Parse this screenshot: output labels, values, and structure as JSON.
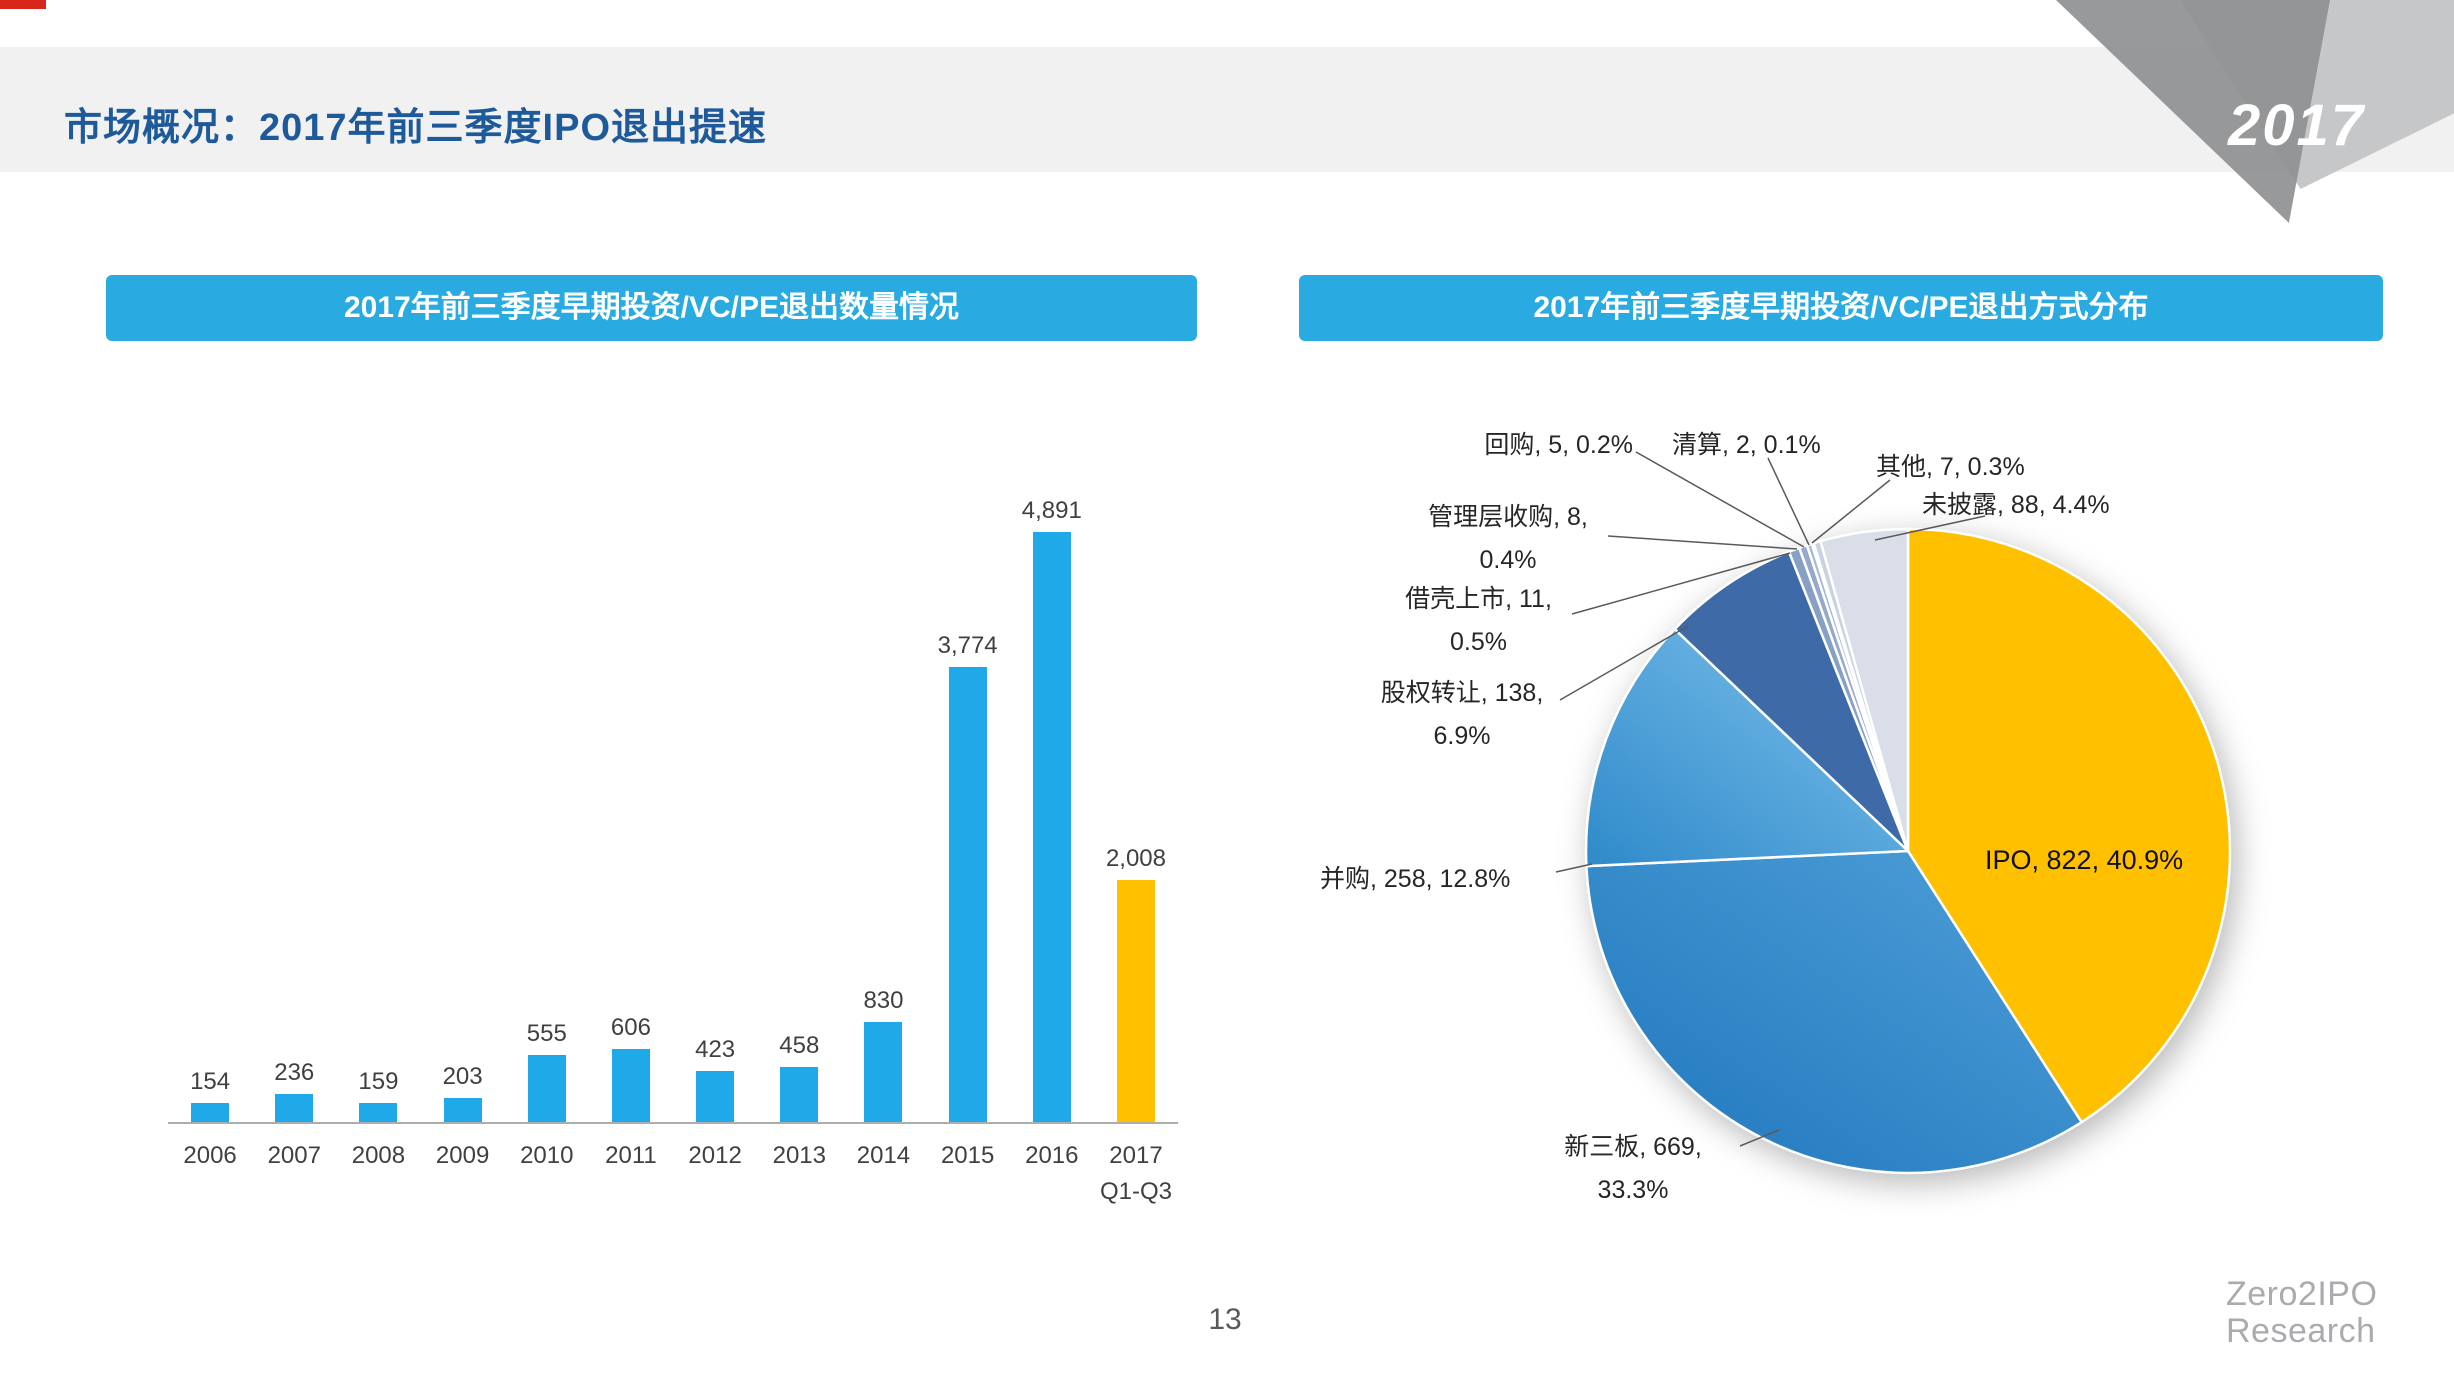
{
  "slide": {
    "title": "市场概况：2017年前三季度IPO退出提速",
    "year_badge": "2017",
    "page_number": "13",
    "logo": {
      "line1": "Zero2IPO",
      "line2": "Research"
    }
  },
  "colors": {
    "accent_red": "#D9261C",
    "title_blue": "#1E5A9A",
    "chart_header_cyan": "#29ABE2",
    "bar_cyan": "#1FA9E8",
    "highlight_yellow": "#FFC000",
    "header_band_gray": "#F1F1F2"
  },
  "chart_data": [
    {
      "type": "bar",
      "title": "2017年前三季度早期投资/VC/PE退出数量情况",
      "categories": [
        "2006",
        "2007",
        "2008",
        "2009",
        "2010",
        "2011",
        "2012",
        "2013",
        "2014",
        "2015",
        "2016",
        "2017\nQ1-Q3"
      ],
      "values": [
        154,
        236,
        159,
        203,
        555,
        606,
        423,
        458,
        830,
        3774,
        4891,
        2008
      ],
      "value_labels": [
        "154",
        "236",
        "159",
        "203",
        "555",
        "606",
        "423",
        "458",
        "830",
        "3,774",
        "4,891",
        "2,008"
      ],
      "bar_color": "#1FA9E8",
      "highlight_color": "#FFC000",
      "highlight_index": 11,
      "ylim": [
        0,
        4891
      ],
      "grid": false,
      "legend": false
    },
    {
      "type": "pie",
      "title": "2017年前三季度早期投资/VC/PE退出方式分布",
      "start_angle_deg": 0,
      "direction": "clockwise",
      "slices": [
        {
          "key": "ipo",
          "label": "IPO",
          "value": 822,
          "pct": "40.9%",
          "color": "#FFC000",
          "display": "IPO, 822, 40.9%"
        },
        {
          "key": "new-third-board",
          "label": "新三板",
          "value": 669,
          "pct": "33.3%",
          "color": "#1E76BC",
          "color2": "#4FA0D8",
          "display": "新三板, 669,\n33.3%"
        },
        {
          "key": "ma",
          "label": "并购",
          "value": 258,
          "pct": "12.8%",
          "color": "#2F8ACA",
          "color2": "#7FC2EC",
          "display": "并购, 258, 12.8%"
        },
        {
          "key": "equity-transfer",
          "label": "股权转让",
          "value": 138,
          "pct": "6.9%",
          "color": "#3E6BA8",
          "display": "股权转让, 138,\n6.9%"
        },
        {
          "key": "backdoor-listing",
          "label": "借壳上市",
          "value": 11,
          "pct": "0.5%",
          "color": "#87A0C4",
          "display": "借壳上市, 11,\n0.5%"
        },
        {
          "key": "mbo",
          "label": "管理层收购",
          "value": 8,
          "pct": "0.4%",
          "color": "#95AACB",
          "display": "管理层收购, 8,\n0.4%"
        },
        {
          "key": "buyback",
          "label": "回购",
          "value": 5,
          "pct": "0.2%",
          "color": "#A6B8D3",
          "display": "回购, 5, 0.2%"
        },
        {
          "key": "liquidation",
          "label": "清算",
          "value": 2,
          "pct": "0.1%",
          "color": "#B7C5DB",
          "display": "清算, 2, 0.1%"
        },
        {
          "key": "other",
          "label": "其他",
          "value": 7,
          "pct": "0.3%",
          "color": "#C8D2E1",
          "display": "其他, 7, 0.3%"
        },
        {
          "key": "undisclosed",
          "label": "未披露",
          "value": 88,
          "pct": "4.4%",
          "color": "#D9DEE9",
          "display": "未披露, 88, 4.4%"
        }
      ]
    }
  ]
}
